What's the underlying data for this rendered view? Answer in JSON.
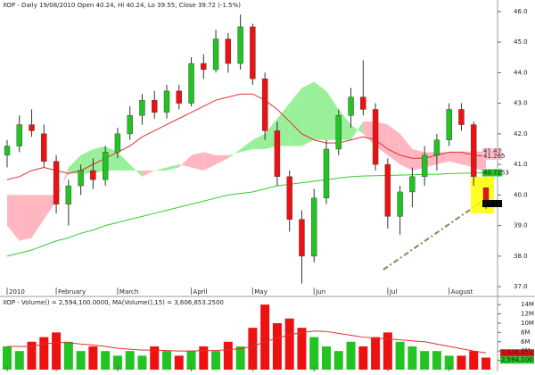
{
  "chart_data": {
    "type": "candlestick",
    "title": "XOP - Daily 19/08/2010 Open 40.24, Hi 40.24, Lo 39.55, Close 39.72 (-1.5%)",
    "categories": [
      "2010",
      null,
      null,
      null,
      "February",
      null,
      null,
      null,
      null,
      "March",
      null,
      null,
      null,
      null,
      null,
      "April",
      null,
      null,
      null,
      null,
      "May",
      null,
      null,
      null,
      null,
      "Jun",
      null,
      null,
      null,
      null,
      null,
      "Jul",
      null,
      null,
      null,
      null,
      "August",
      null,
      null,
      null
    ],
    "open": [
      41.3,
      41.6,
      42.3,
      42.0,
      41.1,
      39.7,
      40.3,
      40.8,
      40.5,
      41.4,
      42.0,
      42.6,
      43.1,
      42.7,
      43.4,
      43.0,
      44.3,
      44.1,
      45.1,
      44.3,
      45.5,
      43.8,
      42.1,
      40.6,
      39.2,
      38.0,
      39.9,
      41.5,
      42.6,
      43.2,
      42.8,
      41.0,
      39.3,
      40.1,
      40.6,
      41.3,
      41.8,
      42.8,
      42.3,
      40.24
    ],
    "high": [
      41.8,
      42.6,
      42.8,
      42.3,
      41.3,
      40.5,
      41.0,
      41.2,
      41.6,
      42.2,
      42.9,
      43.3,
      43.4,
      43.6,
      43.6,
      44.5,
      44.6,
      45.4,
      45.3,
      45.9,
      45.6,
      44.0,
      42.4,
      40.8,
      39.5,
      40.2,
      41.8,
      42.8,
      43.5,
      44.4,
      43.0,
      41.2,
      40.3,
      40.9,
      41.6,
      42.0,
      43.0,
      43.0,
      42.4,
      40.24
    ],
    "low": [
      40.9,
      41.4,
      41.9,
      40.9,
      39.4,
      39.0,
      40.0,
      40.2,
      40.3,
      41.2,
      41.8,
      42.3,
      42.5,
      42.5,
      42.8,
      42.9,
      43.8,
      44.0,
      44.0,
      44.1,
      43.6,
      41.8,
      40.3,
      38.8,
      37.1,
      37.8,
      39.7,
      41.3,
      42.2,
      42.6,
      40.8,
      38.9,
      38.7,
      39.6,
      40.3,
      40.8,
      41.6,
      42.1,
      40.3,
      39.55
    ],
    "close": [
      41.6,
      42.3,
      42.1,
      41.1,
      39.7,
      40.3,
      40.8,
      40.5,
      41.4,
      42.0,
      42.6,
      43.1,
      42.7,
      43.4,
      43.0,
      44.3,
      44.1,
      45.1,
      44.3,
      45.5,
      43.8,
      42.1,
      40.6,
      39.2,
      38.0,
      39.9,
      41.5,
      42.6,
      43.2,
      42.8,
      41.0,
      39.3,
      40.1,
      40.6,
      41.3,
      41.8,
      42.8,
      42.3,
      40.6,
      39.72
    ],
    "up_color": "#22c322",
    "down_color": "#ee1111",
    "ylim": [
      36.8,
      46.2
    ],
    "yticks": [
      {
        "value": 37,
        "label": "37.0"
      },
      {
        "value": 38,
        "label": "38.0"
      },
      {
        "value": 39,
        "label": "39.0"
      },
      {
        "value": 40,
        "label": "40.0"
      },
      {
        "value": 41,
        "label": "41.0"
      },
      {
        "value": 42,
        "label": "42.0"
      },
      {
        "value": 43,
        "label": "43.0"
      },
      {
        "value": 44,
        "label": "44.0"
      },
      {
        "value": 45,
        "label": "45.0"
      },
      {
        "value": 46,
        "label": "46.0"
      }
    ],
    "lines": [
      {
        "color": "#33cc33",
        "values": [
          38.0,
          38.1,
          38.2,
          38.35,
          38.5,
          38.6,
          38.75,
          38.85,
          39.0,
          39.1,
          39.2,
          39.3,
          39.4,
          39.5,
          39.6,
          39.7,
          39.8,
          39.9,
          40.0,
          40.05,
          40.1,
          40.2,
          40.3,
          40.35,
          40.4,
          40.45,
          40.5,
          40.55,
          40.6,
          40.62,
          40.63,
          40.64,
          40.65,
          40.66,
          40.67,
          40.68,
          40.7,
          40.71,
          40.72,
          40.7253
        ]
      },
      {
        "color": "#e03030",
        "values": [
          40.5,
          40.6,
          40.8,
          40.9,
          40.8,
          40.7,
          40.8,
          41.0,
          41.2,
          41.4,
          41.6,
          41.9,
          42.1,
          42.3,
          42.5,
          42.7,
          42.9,
          43.1,
          43.2,
          43.3,
          43.3,
          43.1,
          42.8,
          42.4,
          42.0,
          41.8,
          41.7,
          41.7,
          41.8,
          41.9,
          41.8,
          41.5,
          41.3,
          41.2,
          41.2,
          41.3,
          41.4,
          41.4,
          41.3,
          41.265
        ]
      }
    ],
    "cloud": {
      "span_a": [
        39.0,
        38.5,
        38.6,
        39.2,
        39.8,
        40.9,
        41.3,
        41.5,
        41.6,
        41.4,
        41.0,
        40.6,
        40.8,
        40.9,
        41.0,
        40.9,
        40.8,
        41.0,
        41.2,
        41.5,
        41.8,
        42.0,
        42.5,
        43.0,
        43.5,
        43.7,
        43.4,
        42.8,
        42.3,
        42.0,
        41.6,
        41.3,
        41.0,
        40.8,
        40.9,
        41.0,
        41.1,
        41.0,
        40.9,
        40.75
      ],
      "span_b": [
        40.0,
        40.0,
        40.0,
        40.0,
        40.0,
        40.7,
        40.7,
        40.7,
        40.8,
        40.8,
        40.8,
        40.8,
        40.8,
        40.8,
        40.9,
        41.3,
        41.4,
        41.3,
        41.3,
        41.4,
        41.5,
        41.5,
        41.6,
        41.6,
        41.6,
        41.8,
        41.8,
        41.8,
        41.8,
        42.4,
        42.4,
        42.3,
        42.0,
        41.5,
        41.4,
        41.4,
        41.4,
        41.42,
        41.42,
        41.42
      ],
      "up_color": "#9af09a",
      "down_color": "#ffb6c1"
    },
    "price_labels": [
      41.42,
      41.265,
      40.75,
      40.7253,
      39.72
    ],
    "price_label_fills": [
      "#ffc0cb",
      "#ffc0cb",
      "#ffffff",
      "#22c322",
      "#000000"
    ],
    "price_label_text_colors": [
      "#cc0000",
      "#cc0000",
      "#cc0000",
      "#ffffff",
      "#ffffff"
    ],
    "volume": {
      "title": "XOP - Volume() = 2,594,100.0000, MA(Volume(),15) = 3,606,853.2500",
      "values": [
        5,
        4,
        6,
        7,
        8,
        6,
        4,
        5,
        4,
        3,
        4,
        3,
        5,
        4,
        3,
        4,
        5,
        4,
        6,
        5,
        9,
        14,
        10,
        11,
        9,
        7,
        5,
        4,
        6,
        5,
        7,
        8,
        6,
        5,
        4,
        4,
        3,
        3,
        4,
        2.5941
      ],
      "ma": {
        "color": "#e03030",
        "values": [
          5,
          5,
          5,
          5.5,
          5.8,
          5.8,
          5.5,
          5.3,
          5,
          4.6,
          4.4,
          4.2,
          4.2,
          4.1,
          4,
          4,
          4.1,
          4.1,
          4.3,
          4.5,
          5,
          6,
          6.8,
          7.5,
          8,
          8.3,
          8.2,
          7.8,
          7.4,
          7,
          6.8,
          6.6,
          6.4,
          6.2,
          6,
          5.5,
          5,
          4.5,
          4,
          3.607
        ]
      },
      "ylim": [
        0,
        14.6
      ],
      "yticks": [
        {
          "value": 2,
          "label": "2M"
        },
        {
          "value": 4,
          "label": "4M"
        },
        {
          "value": 6,
          "label": "6M"
        },
        {
          "value": 8,
          "label": "8M"
        },
        {
          "value": 10,
          "label": "10M"
        },
        {
          "value": 12,
          "label": "12M"
        },
        {
          "value": 14,
          "label": "14M"
        }
      ],
      "value_labels_right": [
        "3,606,853",
        "2,594,100"
      ]
    }
  }
}
